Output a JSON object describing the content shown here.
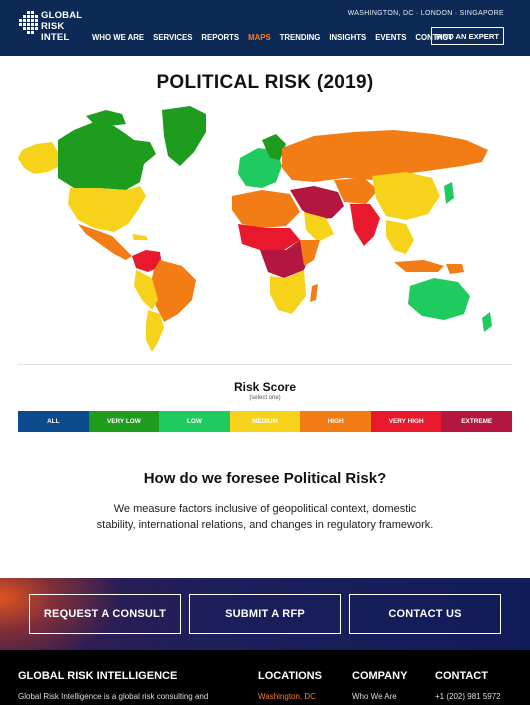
{
  "header": {
    "logo_lines": [
      "GLOBAL",
      "RISK",
      "INTEL"
    ],
    "cities": "WASHINGTON, DC  ·  LONDON  ·  SINGAPORE",
    "nav": [
      {
        "label": "WHO WE ARE",
        "active": false
      },
      {
        "label": "SERVICES",
        "active": false
      },
      {
        "label": "REPORTS",
        "active": false
      },
      {
        "label": "MAPS",
        "active": true
      },
      {
        "label": "TRENDING",
        "active": false
      },
      {
        "label": "INSIGHTS",
        "active": false
      },
      {
        "label": "EVENTS",
        "active": false
      },
      {
        "label": "CONTACT",
        "active": false
      }
    ],
    "expert_button": "FIND AN EXPERT",
    "colors": {
      "bar": "#0d2a57",
      "active": "#f07d2a"
    }
  },
  "map": {
    "title": "POLITICAL RISK (2019)",
    "icon": "world-map"
  },
  "legend": {
    "title": "Risk Score",
    "subtitle": "(select one)",
    "items": [
      {
        "label": "ALL",
        "color": "#0d4b8f"
      },
      {
        "label": "VERY LOW",
        "color": "#1e9c1e"
      },
      {
        "label": "LOW",
        "color": "#1fcb5e"
      },
      {
        "label": "MEDIUM",
        "color": "#f7d21a"
      },
      {
        "label": "HIGH",
        "color": "#f27d14"
      },
      {
        "label": "VERY HIGH",
        "color": "#e8192c"
      },
      {
        "label": "EXTREME",
        "color": "#b3173f"
      }
    ]
  },
  "foresee": {
    "title": "How do we foresee Political Risk?",
    "body": "We measure factors inclusive of geopolitical context, domestic stability, international relations, and changes in regulatory framework."
  },
  "cta": {
    "buttons": [
      "REQUEST A CONSULT",
      "SUBMIT A RFP",
      "CONTACT US"
    ]
  },
  "footer": {
    "brand_heading": "GLOBAL RISK INTELLIGENCE",
    "brand_text": "Global Risk Intelligence is a global risk consulting and",
    "locations_heading": "LOCATIONS",
    "locations_first": "Washington, DC",
    "company_heading": "COMPANY",
    "company_first": "Who We Are",
    "contact_heading": "CONTACT",
    "contact_phone": "+1 (202) 981 5972"
  }
}
